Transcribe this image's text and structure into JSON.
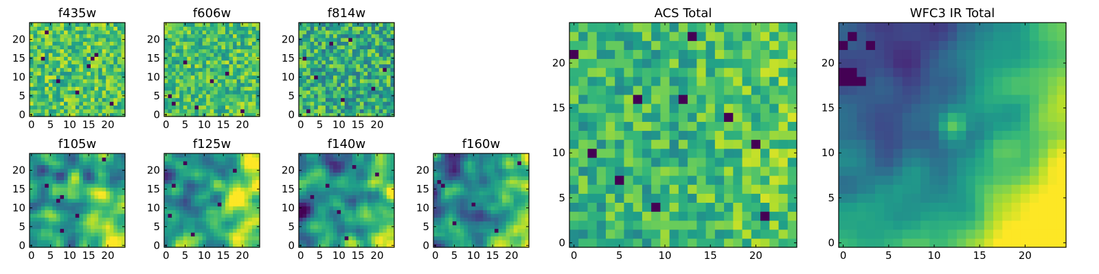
{
  "figure": {
    "palette": [
      "#440154",
      "#482878",
      "#3e4989",
      "#31688e",
      "#26828e",
      "#1f9e89",
      "#35b779",
      "#6ece58",
      "#b5de2b",
      "#fde725"
    ]
  },
  "chart_data": [
    {
      "type": "heatmap",
      "title": "f435w",
      "grid_size": 25,
      "xlim": [
        0,
        24
      ],
      "ylim": [
        0,
        24
      ],
      "xticks": [
        0,
        5,
        10,
        15,
        20
      ],
      "yticks": [
        0,
        5,
        10,
        15,
        20
      ],
      "texture": "noise",
      "base": 0.72,
      "noise": 0.22,
      "seed": 11,
      "dark_spots": [
        [
          21,
          3
        ],
        [
          7,
          9
        ],
        [
          16,
          15
        ],
        [
          17,
          16
        ],
        [
          12,
          6
        ],
        [
          3,
          15
        ],
        [
          4,
          22
        ],
        [
          15,
          13
        ]
      ],
      "gradient": null,
      "hotspot": null
    },
    {
      "type": "heatmap",
      "title": "f606w",
      "grid_size": 25,
      "xlim": [
        0,
        24
      ],
      "ylim": [
        0,
        24
      ],
      "xticks": [
        0,
        5,
        10,
        15,
        20
      ],
      "yticks": [
        0,
        5,
        10,
        15,
        20
      ],
      "texture": "noise",
      "base": 0.7,
      "noise": 0.22,
      "seed": 23,
      "dark_spots": [
        [
          1,
          5
        ],
        [
          2,
          3
        ],
        [
          5,
          14
        ],
        [
          12,
          9
        ],
        [
          16,
          11
        ],
        [
          20,
          1
        ],
        [
          8,
          2
        ]
      ],
      "gradient": null,
      "hotspot": null
    },
    {
      "type": "heatmap",
      "title": "f814w",
      "grid_size": 25,
      "xlim": [
        0,
        24
      ],
      "ylim": [
        0,
        24
      ],
      "xticks": [
        0,
        5,
        10,
        15,
        20
      ],
      "yticks": [
        0,
        5,
        10,
        15,
        20
      ],
      "texture": "noise",
      "base": 0.62,
      "noise": 0.26,
      "seed": 37,
      "dark_spots": [
        [
          1,
          15
        ],
        [
          4,
          10
        ],
        [
          8,
          19
        ],
        [
          11,
          4
        ],
        [
          13,
          20
        ],
        [
          19,
          7
        ],
        [
          2,
          1
        ],
        [
          22,
          12
        ]
      ],
      "gradient": null,
      "hotspot": null
    },
    {
      "type": "heatmap",
      "title": "f105w",
      "grid_size": 25,
      "xlim": [
        0,
        24
      ],
      "ylim": [
        0,
        24
      ],
      "xticks": [
        0,
        5,
        10,
        15,
        20
      ],
      "yticks": [
        0,
        5,
        10,
        15,
        20
      ],
      "texture": "smooth",
      "base": 0.5,
      "noise": 0.32,
      "seed": 41,
      "dark_spots": [
        [
          8,
          13
        ],
        [
          7,
          12
        ],
        [
          19,
          23
        ],
        [
          8,
          4
        ],
        [
          4,
          16
        ],
        [
          12,
          8
        ]
      ],
      "gradient": [
        0.18,
        0.12
      ],
      "hotspot": null
    },
    {
      "type": "heatmap",
      "title": "f125w",
      "grid_size": 25,
      "xlim": [
        0,
        24
      ],
      "ylim": [
        0,
        24
      ],
      "xticks": [
        0,
        5,
        10,
        15,
        20
      ],
      "yticks": [
        0,
        5,
        10,
        15,
        20
      ],
      "texture": "smooth",
      "base": 0.52,
      "noise": 0.3,
      "seed": 53,
      "dark_spots": [
        [
          2,
          16
        ],
        [
          14,
          11
        ],
        [
          7,
          3
        ],
        [
          5,
          22
        ],
        [
          18,
          20
        ],
        [
          1,
          8
        ]
      ],
      "gradient": [
        0.26,
        0.14
      ],
      "hotspot": [
        11,
        13,
        0.3
      ]
    },
    {
      "type": "heatmap",
      "title": "f140w",
      "grid_size": 25,
      "xlim": [
        0,
        24
      ],
      "ylim": [
        0,
        24
      ],
      "xticks": [
        0,
        5,
        10,
        15,
        20
      ],
      "yticks": [
        0,
        5,
        10,
        15,
        20
      ],
      "texture": "smooth",
      "base": 0.44,
      "noise": 0.3,
      "seed": 67,
      "dark_spots": [
        [
          10,
          9
        ],
        [
          3,
          13
        ],
        [
          7,
          16
        ],
        [
          14,
          21
        ],
        [
          12,
          2
        ],
        [
          20,
          19
        ]
      ],
      "gradient": [
        0.34,
        0.18
      ],
      "hotspot": null
    },
    {
      "type": "heatmap",
      "title": "f160w",
      "grid_size": 25,
      "xlim": [
        0,
        24
      ],
      "ylim": [
        0,
        24
      ],
      "xticks": [
        0,
        5,
        10,
        15,
        20
      ],
      "yticks": [
        0,
        5,
        10,
        15,
        20
      ],
      "texture": "smooth",
      "base": 0.4,
      "noise": 0.28,
      "seed": 71,
      "dark_spots": [
        [
          1,
          17
        ],
        [
          2,
          16
        ],
        [
          5,
          6
        ],
        [
          10,
          11
        ],
        [
          16,
          4
        ],
        [
          22,
          22
        ]
      ],
      "gradient": [
        0.4,
        0.2
      ],
      "hotspot": null
    },
    {
      "type": "heatmap",
      "title": "ACS Total",
      "grid_size": 25,
      "xlim": [
        0,
        24
      ],
      "ylim": [
        0,
        24
      ],
      "xticks": [
        0,
        5,
        10,
        15,
        20
      ],
      "yticks": [
        0,
        5,
        10,
        15,
        20
      ],
      "texture": "noise",
      "base": 0.66,
      "noise": 0.2,
      "seed": 83,
      "dark_spots": [
        [
          13,
          23
        ],
        [
          0,
          21
        ],
        [
          7,
          16
        ],
        [
          12,
          16
        ],
        [
          9,
          4
        ],
        [
          17,
          14
        ],
        [
          20,
          11
        ],
        [
          2,
          10
        ],
        [
          5,
          7
        ],
        [
          21,
          3
        ]
      ],
      "gradient": [
        0.1,
        0.0
      ],
      "hotspot": null
    },
    {
      "type": "heatmap",
      "title": "WFC3 IR Total",
      "grid_size": 25,
      "xlim": [
        0,
        24
      ],
      "ylim": [
        0,
        24
      ],
      "xticks": [
        0,
        5,
        10,
        15,
        20
      ],
      "yticks": [
        0,
        5,
        10,
        15,
        20
      ],
      "texture": "smooth",
      "base": 0.3,
      "noise": 0.1,
      "seed": 97,
      "dark_spots": [
        [
          0,
          19
        ],
        [
          1,
          19
        ],
        [
          0,
          18
        ],
        [
          1,
          18
        ],
        [
          2,
          18
        ],
        [
          0,
          22
        ],
        [
          1,
          23
        ],
        [
          3,
          22
        ]
      ],
      "gradient": [
        0.55,
        0.45
      ],
      "hotspot": [
        12,
        13,
        0.42
      ]
    }
  ]
}
